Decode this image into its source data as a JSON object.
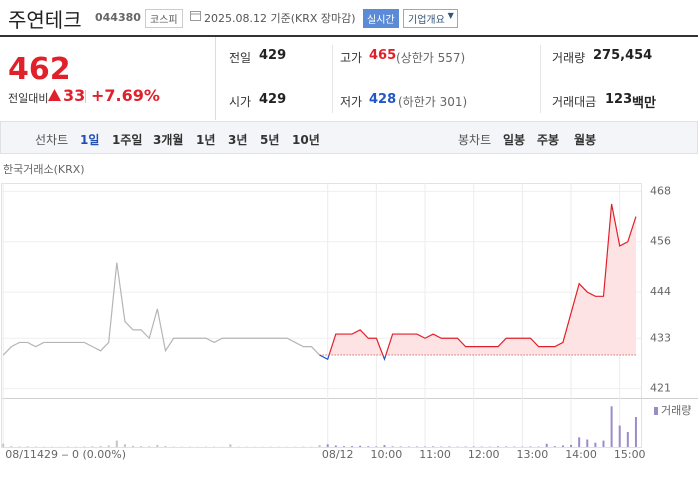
{
  "header": {
    "name": "주연테크",
    "code": "044380",
    "market": "코스피",
    "date": "2025.08.12 기준(KRX 장마감)",
    "realtime": "실시간",
    "company_info": "기업개요"
  },
  "price": {
    "current": "462",
    "change_label": "전일대비",
    "change": "33",
    "change_pct": "+7.69%"
  },
  "stats": [
    {
      "label": "전일",
      "value": "429"
    },
    {
      "label": "고가",
      "value": "465",
      "note": "(상한가 557)"
    },
    {
      "label": "거래량",
      "value": "275,454"
    },
    {
      "label": "시가",
      "value": "429"
    },
    {
      "label": "저가",
      "value": "428",
      "note": "(하한가 301)"
    },
    {
      "label": "거래대금",
      "value": "123",
      "unit": "백만"
    }
  ],
  "toolbar": {
    "line_label": "선차트",
    "line_periods": [
      "1일",
      "1주일",
      "3개월",
      "1년",
      "3년",
      "5년",
      "10년"
    ],
    "candle_label": "봉차트",
    "candle_periods": [
      "일봉",
      "주봉",
      "월봉"
    ]
  },
  "chart_data": [
    {
      "type": "line",
      "source": "한국거래소(KRX)",
      "info": "429 ‒ 0 (0.00%)",
      "baseline": 429,
      "xlim": [
        -0.4,
        78.5
      ],
      "ylim": [
        419,
        470
      ],
      "yticks": [
        468,
        456,
        444,
        433,
        421
      ],
      "xticks": [
        {
          "value": 0,
          "label": "08/11"
        },
        {
          "value": 40,
          "label": "08/12"
        },
        {
          "value": 46,
          "label": "10:00"
        },
        {
          "value": 52,
          "label": "11:00"
        },
        {
          "value": 58,
          "label": "12:00"
        },
        {
          "value": 64,
          "label": "13:00"
        },
        {
          "value": 70,
          "label": "14:00"
        },
        {
          "value": 76,
          "label": "15:00"
        }
      ],
      "grid": true,
      "series": [
        {
          "color": "#b5b5b5",
          "x": [
            0,
            1,
            2,
            3,
            4,
            5,
            6,
            7,
            8,
            9,
            10,
            11,
            12,
            13,
            14,
            15,
            16,
            17,
            18,
            19,
            20,
            21,
            22,
            23,
            24,
            25,
            26,
            27,
            28,
            29,
            30,
            31,
            32,
            33,
            34,
            35,
            36,
            37,
            38,
            39
          ],
          "values": [
            429,
            431,
            432,
            432,
            431,
            432,
            432,
            432,
            432,
            432,
            432,
            431,
            430,
            432,
            451,
            437,
            435,
            435,
            433,
            440,
            430,
            433,
            433,
            433,
            433,
            433,
            432,
            433,
            433,
            433,
            433,
            433,
            433,
            433,
            433,
            433,
            432,
            431,
            431,
            429
          ]
        },
        {
          "color": "#e0212b",
          "color_below": "#2157c6",
          "fill": "#fde3e3",
          "x": [
            39,
            40,
            41,
            42,
            43,
            44,
            45,
            46,
            47,
            48,
            49,
            50,
            51,
            52,
            53,
            54,
            55,
            56,
            57,
            58,
            59,
            60,
            61,
            62,
            63,
            64,
            65,
            66,
            67,
            68,
            69,
            70,
            71,
            72,
            73,
            74,
            75,
            76,
            77,
            78
          ],
          "values": [
            429,
            428,
            434,
            434,
            434,
            435,
            433,
            433,
            428,
            434,
            434,
            434,
            434,
            433,
            434,
            433,
            433,
            433,
            431,
            431,
            431,
            431,
            431,
            433,
            433,
            433,
            433,
            431,
            431,
            431,
            432,
            439,
            446,
            444,
            443,
            443,
            465,
            455,
            456,
            462
          ]
        }
      ]
    },
    {
      "type": "bar",
      "xlim": [
        -0.4,
        78.5
      ],
      "ylim": [
        0,
        42000
      ],
      "series": [
        {
          "color": "#c4c4c4",
          "x": [
            0,
            1,
            2,
            3,
            4,
            5,
            6,
            7,
            8,
            9,
            10,
            11,
            12,
            13,
            14,
            15,
            16,
            17,
            18,
            19,
            20,
            21,
            22,
            23,
            24,
            25,
            26,
            27,
            28,
            29,
            30,
            31,
            32,
            33,
            34,
            35,
            36,
            37,
            38,
            39
          ],
          "values": [
            3000,
            800,
            500,
            600,
            400,
            300,
            300,
            200,
            400,
            300,
            500,
            700,
            900,
            1500,
            6000,
            2500,
            1200,
            800,
            600,
            2000,
            900,
            400,
            300,
            300,
            200,
            300,
            300,
            200,
            2500,
            300,
            300,
            200,
            200,
            300,
            200,
            200,
            300,
            400,
            300,
            1800
          ]
        },
        {
          "name": "거래량",
          "color": "#9b8cc8",
          "x": [
            40,
            41,
            42,
            43,
            44,
            45,
            46,
            47,
            48,
            49,
            50,
            51,
            52,
            53,
            54,
            55,
            56,
            57,
            58,
            59,
            60,
            61,
            62,
            63,
            64,
            65,
            66,
            67,
            68,
            69,
            70,
            71,
            72,
            73,
            74,
            75,
            76,
            77,
            78
          ],
          "values": [
            2500,
            1500,
            800,
            900,
            1200,
            700,
            500,
            1800,
            600,
            500,
            400,
            500,
            400,
            600,
            400,
            500,
            300,
            400,
            500,
            400,
            300,
            600,
            500,
            400,
            300,
            500,
            400,
            3000,
            800,
            1500,
            2000,
            9000,
            7000,
            4000,
            6000,
            38000,
            20000,
            14000,
            28000
          ]
        }
      ]
    }
  ]
}
